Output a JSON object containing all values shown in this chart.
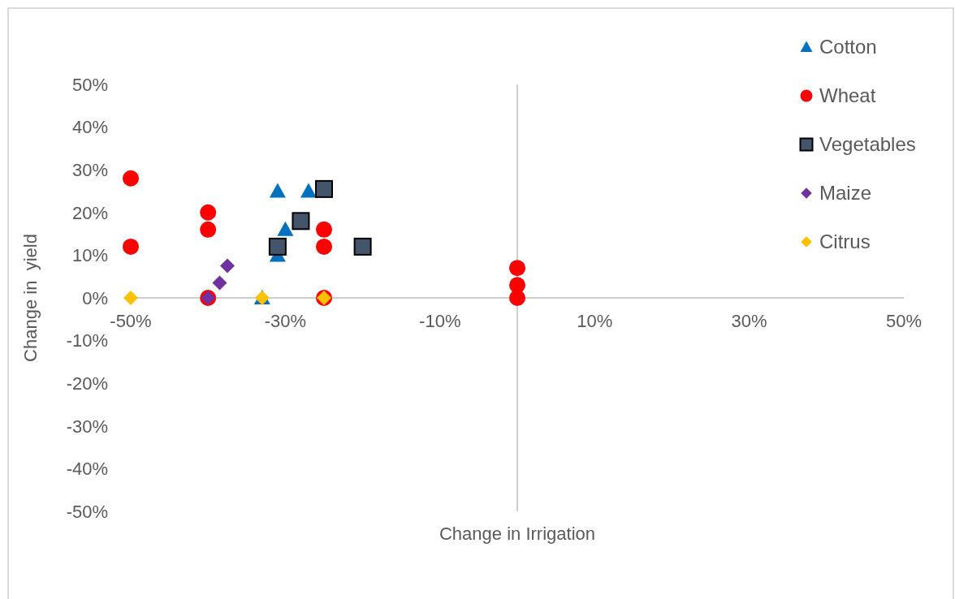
{
  "chart_data": {
    "type": "scatter",
    "xlabel": "Change in Irrigation",
    "ylabel": "Change in  yield",
    "xlim": [
      -50,
      50
    ],
    "ylim": [
      -50,
      50
    ],
    "xticks": [
      {
        "value": -50,
        "label": "-50%"
      },
      {
        "value": -30,
        "label": "-30%"
      },
      {
        "value": -10,
        "label": "-10%"
      },
      {
        "value": 10,
        "label": "10%"
      },
      {
        "value": 30,
        "label": "30%"
      },
      {
        "value": 50,
        "label": "50%"
      }
    ],
    "yticks": [
      {
        "value": -50,
        "label": "-50%"
      },
      {
        "value": -40,
        "label": "-40%"
      },
      {
        "value": -30,
        "label": "-30%"
      },
      {
        "value": -20,
        "label": "-20%"
      },
      {
        "value": -10,
        "label": "-10%"
      },
      {
        "value": 0,
        "label": "0%"
      },
      {
        "value": 10,
        "label": "10%"
      },
      {
        "value": 20,
        "label": "20%"
      },
      {
        "value": 30,
        "label": "30%"
      },
      {
        "value": 40,
        "label": "40%"
      },
      {
        "value": 50,
        "label": "50%"
      }
    ],
    "grid": false,
    "legend": "top right",
    "series": [
      {
        "name": "Cotton",
        "color": "#0070c0",
        "marker": "triangle",
        "x": [
          -31,
          -27,
          -30,
          -31,
          -33
        ],
        "values": [
          25,
          25,
          16,
          10,
          0
        ]
      },
      {
        "name": "Wheat",
        "color": "#ff0000",
        "marker": "circle",
        "x": [
          -50,
          -50,
          -40,
          -40,
          -40,
          -25,
          -25,
          -25,
          0,
          0,
          0
        ],
        "values": [
          28,
          12,
          20,
          16,
          0,
          16,
          12,
          0,
          7,
          3,
          0
        ]
      },
      {
        "name": "Vegetables",
        "color": "#44546a",
        "marker": "square",
        "x": [
          -31,
          -28,
          -25,
          -20
        ],
        "values": [
          12,
          18,
          25.5,
          12
        ]
      },
      {
        "name": "Maize",
        "color": "#7030a0",
        "marker": "diamond",
        "x": [
          -40,
          -38.5,
          -37.5
        ],
        "values": [
          0,
          3.5,
          7.5
        ]
      },
      {
        "name": "Citrus",
        "color": "#ffc000",
        "marker": "diamond",
        "x": [
          -50,
          -33,
          -25
        ],
        "values": [
          0,
          0,
          0
        ]
      }
    ]
  }
}
